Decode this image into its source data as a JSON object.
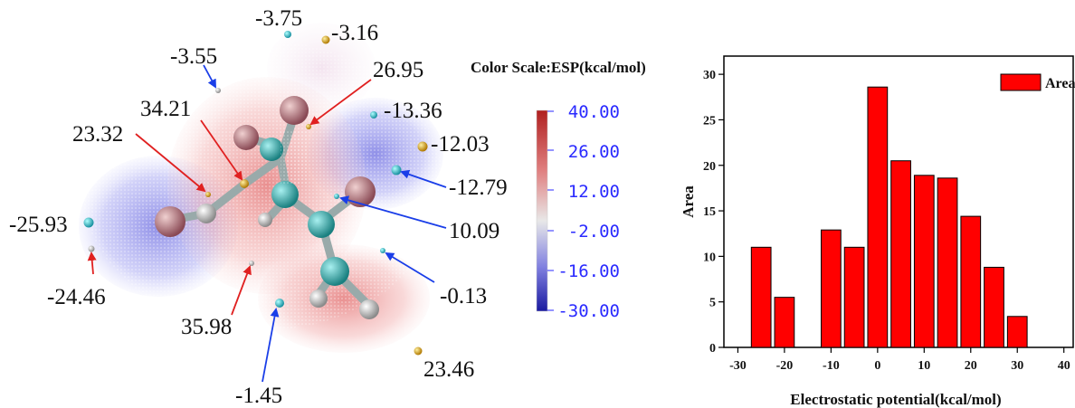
{
  "colors": {
    "positive": "#c0392b",
    "negative": "#3a3ad0",
    "red_arrow": "#e02020",
    "blue_arrow": "#1a3ee8",
    "bar_fill": "#ff0000",
    "scale_text": "#2a2aff"
  },
  "molecule": {
    "esp_values": [
      "-3.75",
      "-3.16",
      "-3.55",
      "26.95",
      "34.21",
      "-13.36",
      "23.32",
      "-12.03",
      "-12.79",
      "-25.93",
      "10.09",
      "-24.46",
      "-0.13",
      "35.98",
      "-1.45",
      "23.46"
    ]
  },
  "color_scale": {
    "title": "Color Scale:ESP(kcal/mol)",
    "ticks": [
      "40.00",
      "26.00",
      "12.00",
      "-2.00",
      "-16.00",
      "-30.00"
    ]
  },
  "chart_data": {
    "type": "bar",
    "xlabel": "Electrostatic potential(kcal/mol)",
    "ylabel": "Area",
    "xlim": [
      -33,
      42
    ],
    "ylim": [
      0,
      32
    ],
    "xticks": [
      -30,
      -20,
      -10,
      0,
      10,
      20,
      30,
      40
    ],
    "yticks": [
      0,
      5,
      10,
      15,
      20,
      25,
      30
    ],
    "bin_width": 5,
    "legend_position": "top-right",
    "series": [
      {
        "name": "Area",
        "x": [
          -25,
          -20,
          -15,
          -10,
          -5,
          0,
          5,
          10,
          15,
          20,
          25,
          30,
          35
        ],
        "values": [
          11.0,
          5.5,
          0,
          12.9,
          11.0,
          28.6,
          20.5,
          18.9,
          18.6,
          14.4,
          8.8,
          3.4,
          0
        ]
      }
    ]
  }
}
